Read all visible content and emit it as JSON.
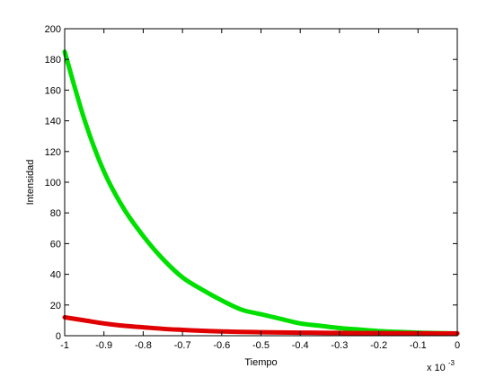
{
  "chart_data": {
    "type": "line",
    "title": "",
    "xlabel": "Tiempo",
    "ylabel": "Intensidad",
    "x_multiplier_label": {
      "base": "x 10",
      "exponent": "-3"
    },
    "xlim": [
      -1,
      0
    ],
    "ylim": [
      0,
      200
    ],
    "grid": false,
    "legend": "none",
    "x_ticks": [
      -1,
      -0.9,
      -0.8,
      -0.7,
      -0.6,
      -0.5,
      -0.4,
      -0.3,
      -0.2,
      -0.1,
      0
    ],
    "x_tick_labels": [
      "-1",
      "-0.9",
      "-0.8",
      "-0.7",
      "-0.6",
      "-0.5",
      "-0.4",
      "-0.3",
      "-0.2",
      "-0.1",
      "0"
    ],
    "y_ticks": [
      0,
      20,
      40,
      60,
      80,
      100,
      120,
      140,
      160,
      180,
      200
    ],
    "y_tick_labels": [
      "0",
      "20",
      "40",
      "60",
      "80",
      "100",
      "120",
      "140",
      "160",
      "180",
      "200"
    ],
    "x": [
      -1,
      -0.95,
      -0.9,
      -0.85,
      -0.8,
      -0.75,
      -0.7,
      -0.65,
      -0.6,
      -0.55,
      -0.5,
      -0.45,
      -0.4,
      -0.35,
      -0.3,
      -0.25,
      -0.2,
      -0.15,
      -0.1,
      -0.05,
      0
    ],
    "series": [
      {
        "color": "#00e000",
        "values": [
          185,
          141,
          107,
          83,
          65,
          50,
          38,
          30,
          23,
          17,
          14,
          11,
          8,
          6.5,
          5,
          4,
          3,
          2.5,
          2,
          1.7,
          1.5
        ]
      },
      {
        "color": "#e00000",
        "values": [
          12,
          10,
          8,
          6.5,
          5.5,
          4.5,
          3.8,
          3.2,
          2.8,
          2.5,
          2.3,
          2.1,
          2.0,
          1.9,
          1.8,
          1.7,
          1.65,
          1.6,
          1.55,
          1.5,
          1.5
        ]
      }
    ]
  }
}
